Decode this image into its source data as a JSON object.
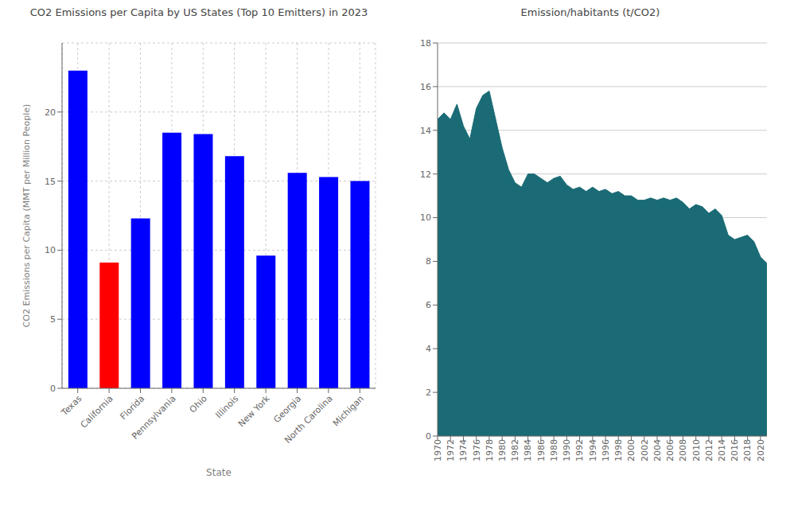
{
  "chart_data": [
    {
      "type": "bar",
      "title": "CO2 Emissions per Capita by US States (Top 10 Emitters) in 2023",
      "x_label": "State",
      "y_label": "CO2 Emissions per Capita (MMT per Million People)",
      "categories": [
        "Texas",
        "California",
        "Florida",
        "Pennsylvania",
        "Ohio",
        "Illinois",
        "New York",
        "Georgia",
        "North Carolina",
        "Michigan"
      ],
      "values": [
        23.0,
        9.1,
        12.3,
        18.5,
        18.4,
        16.8,
        9.6,
        15.6,
        15.3,
        15.0
      ],
      "colors": [
        "blue",
        "red",
        "blue",
        "blue",
        "blue",
        "blue",
        "blue",
        "blue",
        "blue",
        "blue"
      ],
      "ylim": [
        0,
        25
      ],
      "yticks": [
        0,
        5,
        10,
        15,
        20
      ],
      "grid": true
    },
    {
      "type": "area",
      "title": "Emission/habitants (t/CO2)",
      "color": "#1a6b75",
      "x": [
        1970,
        1971,
        1972,
        1973,
        1974,
        1975,
        1976,
        1977,
        1978,
        1979,
        1980,
        1981,
        1982,
        1983,
        1984,
        1985,
        1986,
        1987,
        1988,
        1989,
        1990,
        1991,
        1992,
        1993,
        1994,
        1995,
        1996,
        1997,
        1998,
        1999,
        2000,
        2001,
        2002,
        2003,
        2004,
        2005,
        2006,
        2007,
        2008,
        2009,
        2010,
        2011,
        2012,
        2013,
        2014,
        2015,
        2016,
        2017,
        2018,
        2019,
        2020,
        2021
      ],
      "values": [
        14.5,
        14.8,
        14.5,
        15.2,
        14.2,
        13.6,
        15.0,
        15.6,
        15.8,
        14.5,
        13.2,
        12.2,
        11.6,
        11.4,
        12.0,
        12.0,
        11.8,
        11.6,
        11.8,
        11.9,
        11.5,
        11.3,
        11.4,
        11.2,
        11.4,
        11.2,
        11.3,
        11.1,
        11.2,
        11.0,
        11.0,
        10.8,
        10.8,
        10.9,
        10.8,
        10.9,
        10.8,
        10.9,
        10.7,
        10.4,
        10.6,
        10.5,
        10.2,
        10.4,
        10.1,
        9.2,
        9.0,
        9.1,
        9.2,
        8.9,
        8.2,
        7.9
      ],
      "xlim": [
        1970,
        2021
      ],
      "xticks": [
        1970,
        1972,
        1974,
        1976,
        1978,
        1980,
        1982,
        1984,
        1986,
        1988,
        1990,
        1992,
        1994,
        1996,
        1998,
        2000,
        2002,
        2004,
        2006,
        2008,
        2010,
        2012,
        2014,
        2016,
        2018,
        2020
      ],
      "ylim": [
        0,
        18
      ],
      "yticks": [
        0,
        2,
        4,
        6,
        8,
        10,
        12,
        14,
        16,
        18
      ],
      "grid": "y"
    }
  ]
}
